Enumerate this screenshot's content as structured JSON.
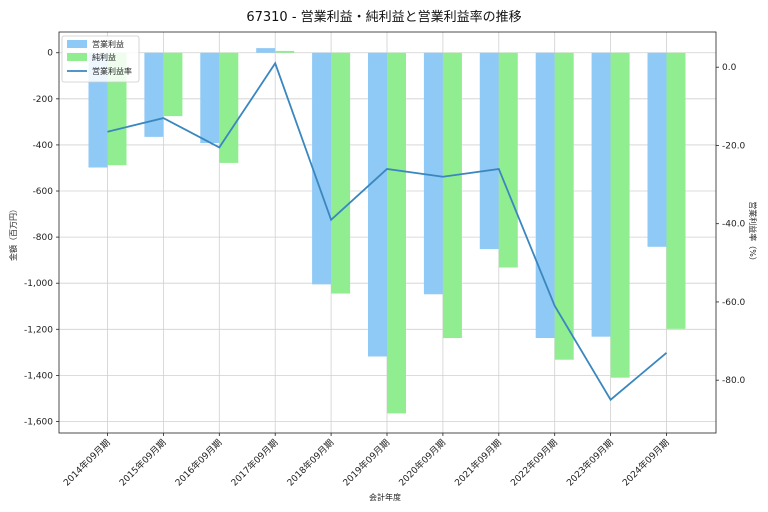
{
  "chart_data": {
    "type": "bar",
    "title": "67310 - 営業利益・純利益と営業利益率の推移",
    "xlabel": "会計年度",
    "ylabel": "金額（百万円）",
    "y2label": "営業利益率（%）",
    "categories": [
      "2014年09月期",
      "2015年09月期",
      "2016年09月期",
      "2017年09月期",
      "2018年09月期",
      "2019年09月期",
      "2020年09月期",
      "2021年09月期",
      "2022年09月期",
      "2023年09月期",
      "2024年09月期"
    ],
    "series": [
      {
        "name": "営業利益",
        "kind": "bar",
        "color": "#8fc9f5",
        "values": [
          -498,
          -365,
          -392,
          20,
          -1005,
          -1318,
          -1048,
          -852,
          -1238,
          -1232,
          -842
        ]
      },
      {
        "name": "純利益",
        "kind": "bar",
        "color": "#90ee90",
        "values": [
          -488,
          -275,
          -478,
          8,
          -1045,
          -1565,
          -1238,
          -932,
          -1332,
          -1410,
          -1198
        ]
      },
      {
        "name": "営業利益率",
        "kind": "line",
        "axis": "right",
        "color": "#3a87c0",
        "values": [
          -16.5,
          -13.0,
          -20.5,
          1.0,
          -39.0,
          -26.0,
          -28.0,
          -26.0,
          -61.0,
          -85.0,
          -73.0
        ]
      }
    ],
    "ylim": [
      -1650,
      90
    ],
    "y2lim": [
      -93.5,
      9.0
    ],
    "yticks": [
      0,
      -200,
      -400,
      -600,
      -800,
      -1000,
      -1200,
      -1400,
      -1600
    ],
    "ytick_labels": [
      "0",
      "-200",
      "-400",
      "-600",
      "-800",
      "-1,000",
      "-1,200",
      "-1,400",
      "-1,600"
    ],
    "y2ticks": [
      0,
      -20,
      -40,
      -60,
      -80
    ],
    "y2tick_labels": [
      "0.0",
      "-20.0",
      "-40.0",
      "-60.0",
      "-80.0"
    ],
    "grid": true,
    "legend": "top-left"
  }
}
